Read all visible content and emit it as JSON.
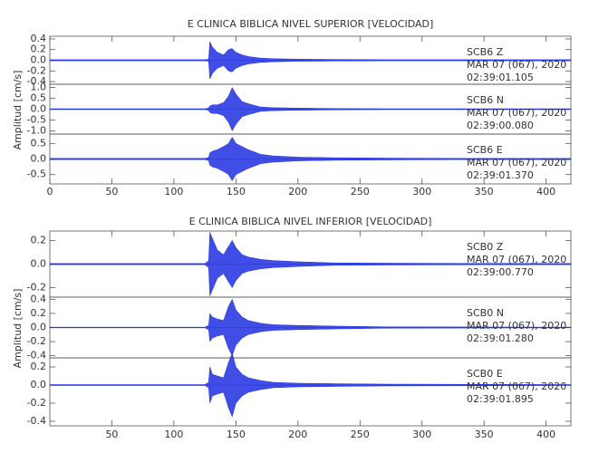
{
  "chart_data": [
    {
      "type": "waveform",
      "title": "E CLINICA BIBLICA NIVEL SUPERIOR [VELOCIDAD]",
      "ylabel": "Amplitud [cm/s]",
      "color": "#1f2fe0",
      "xlim": [
        0,
        420
      ],
      "xticks": [
        0,
        50,
        100,
        150,
        200,
        250,
        300,
        350,
        400
      ],
      "x": [
        0,
        125,
        128,
        129,
        131,
        135,
        140,
        144,
        147,
        150,
        155,
        160,
        170,
        180,
        200,
        230,
        270,
        330,
        420
      ],
      "panels": [
        {
          "station": "SCB6   Z",
          "date": "MAR 07 (067), 2020",
          "time": "02:39:01.105",
          "ylim": [
            -0.45,
            0.45
          ],
          "yticks": [
            {
              "value": 0.4,
              "label": "0.4"
            },
            {
              "value": 0.2,
              "label": "0.2"
            },
            {
              "value": 0,
              "label": "0.0"
            },
            {
              "value": -0.2,
              "label": "-0.2"
            },
            {
              "value": -0.4,
              "label": "-0.4"
            }
          ],
          "values": [
            0.01,
            0.01,
            0.02,
            0.35,
            0.25,
            0.15,
            0.1,
            0.2,
            0.22,
            0.15,
            0.1,
            0.07,
            0.04,
            0.03,
            0.02,
            0.015,
            0.01,
            0.01,
            0.01
          ]
        },
        {
          "station": "SCB6   N",
          "date": "MAR 07 (067), 2020",
          "time": "02:39:00.080",
          "ylim": [
            -1.15,
            1.15
          ],
          "yticks": [
            {
              "value": 1,
              "label": "1.0"
            },
            {
              "value": 0.5,
              "label": "0.5"
            },
            {
              "value": 0,
              "label": "0.0"
            },
            {
              "value": -0.5,
              "label": "-0.5"
            },
            {
              "value": -1,
              "label": "-1.0"
            }
          ],
          "values": [
            0.02,
            0.02,
            0.05,
            0.15,
            0.2,
            0.2,
            0.3,
            0.6,
            1.0,
            0.7,
            0.35,
            0.25,
            0.1,
            0.07,
            0.05,
            0.03,
            0.02,
            0.02,
            0.02
          ]
        },
        {
          "station": "SCB6   E",
          "date": "MAR 07 (067), 2020",
          "time": "02:39:01.370",
          "ylim": [
            -0.8,
            0.8
          ],
          "yticks": [
            {
              "value": 0.5,
              "label": "0.5"
            },
            {
              "value": 0,
              "label": "0.0"
            },
            {
              "value": -0.5,
              "label": "-0.5"
            }
          ],
          "values": [
            0.02,
            0.02,
            0.05,
            0.2,
            0.25,
            0.3,
            0.4,
            0.5,
            0.7,
            0.5,
            0.4,
            0.3,
            0.15,
            0.1,
            0.06,
            0.04,
            0.03,
            0.02,
            0.02
          ]
        }
      ]
    },
    {
      "type": "waveform",
      "title": "E CLINICA BIBLICA NIVEL INFERIOR [VELOCIDAD]",
      "ylabel": "Amplitud [cm/s]",
      "color": "#1f2fe0",
      "xlim": [
        0,
        420
      ],
      "xticks": [
        50,
        100,
        150,
        200,
        250,
        300,
        350,
        400
      ],
      "x": [
        0,
        125,
        128,
        129,
        131,
        135,
        140,
        144,
        147,
        150,
        155,
        160,
        170,
        180,
        200,
        230,
        270,
        330,
        420
      ],
      "panels": [
        {
          "station": "SCB0   Z",
          "date": "MAR 07 (067), 2020",
          "time": "02:39:00.770",
          "ylim": [
            -0.28,
            0.28
          ],
          "yticks": [
            {
              "value": 0.2,
              "label": "0.2"
            },
            {
              "value": 0,
              "label": "0.0"
            },
            {
              "value": -0.2,
              "label": "-0.2"
            }
          ],
          "values": [
            0.005,
            0.005,
            0.03,
            0.27,
            0.22,
            0.12,
            0.08,
            0.15,
            0.2,
            0.14,
            0.08,
            0.06,
            0.04,
            0.03,
            0.02,
            0.01,
            0.008,
            0.006,
            0.005
          ]
        },
        {
          "station": "SCB0   N",
          "date": "MAR 07 (067), 2020",
          "time": "02:39:01.280",
          "ylim": [
            -0.43,
            0.43
          ],
          "yticks": [
            {
              "value": 0.4,
              "label": "0.4"
            },
            {
              "value": 0.2,
              "label": "0.2"
            },
            {
              "value": 0,
              "label": "0.0"
            },
            {
              "value": -0.2,
              "label": "-0.2"
            },
            {
              "value": -0.4,
              "label": "-0.4"
            }
          ],
          "values": [
            0.005,
            0.005,
            0.03,
            0.2,
            0.15,
            0.12,
            0.1,
            0.3,
            0.4,
            0.25,
            0.15,
            0.1,
            0.06,
            0.04,
            0.03,
            0.02,
            0.01,
            0.008,
            0.005
          ]
        },
        {
          "station": "SCB0   E",
          "date": "MAR 07 (067), 2020",
          "time": "02:39:01.895",
          "ylim": [
            -0.45,
            0.3
          ],
          "yticks": [
            {
              "value": 0.2,
              "label": "0.2"
            },
            {
              "value": 0,
              "label": "0.0"
            },
            {
              "value": -0.2,
              "label": "-0.2"
            },
            {
              "value": -0.4,
              "label": "-0.4"
            }
          ],
          "values": [
            0.005,
            0.005,
            0.03,
            0.2,
            0.12,
            0.1,
            0.08,
            0.25,
            0.35,
            0.2,
            0.12,
            0.08,
            0.05,
            0.03,
            0.02,
            0.015,
            0.01,
            0.008,
            0.005
          ]
        }
      ]
    }
  ]
}
